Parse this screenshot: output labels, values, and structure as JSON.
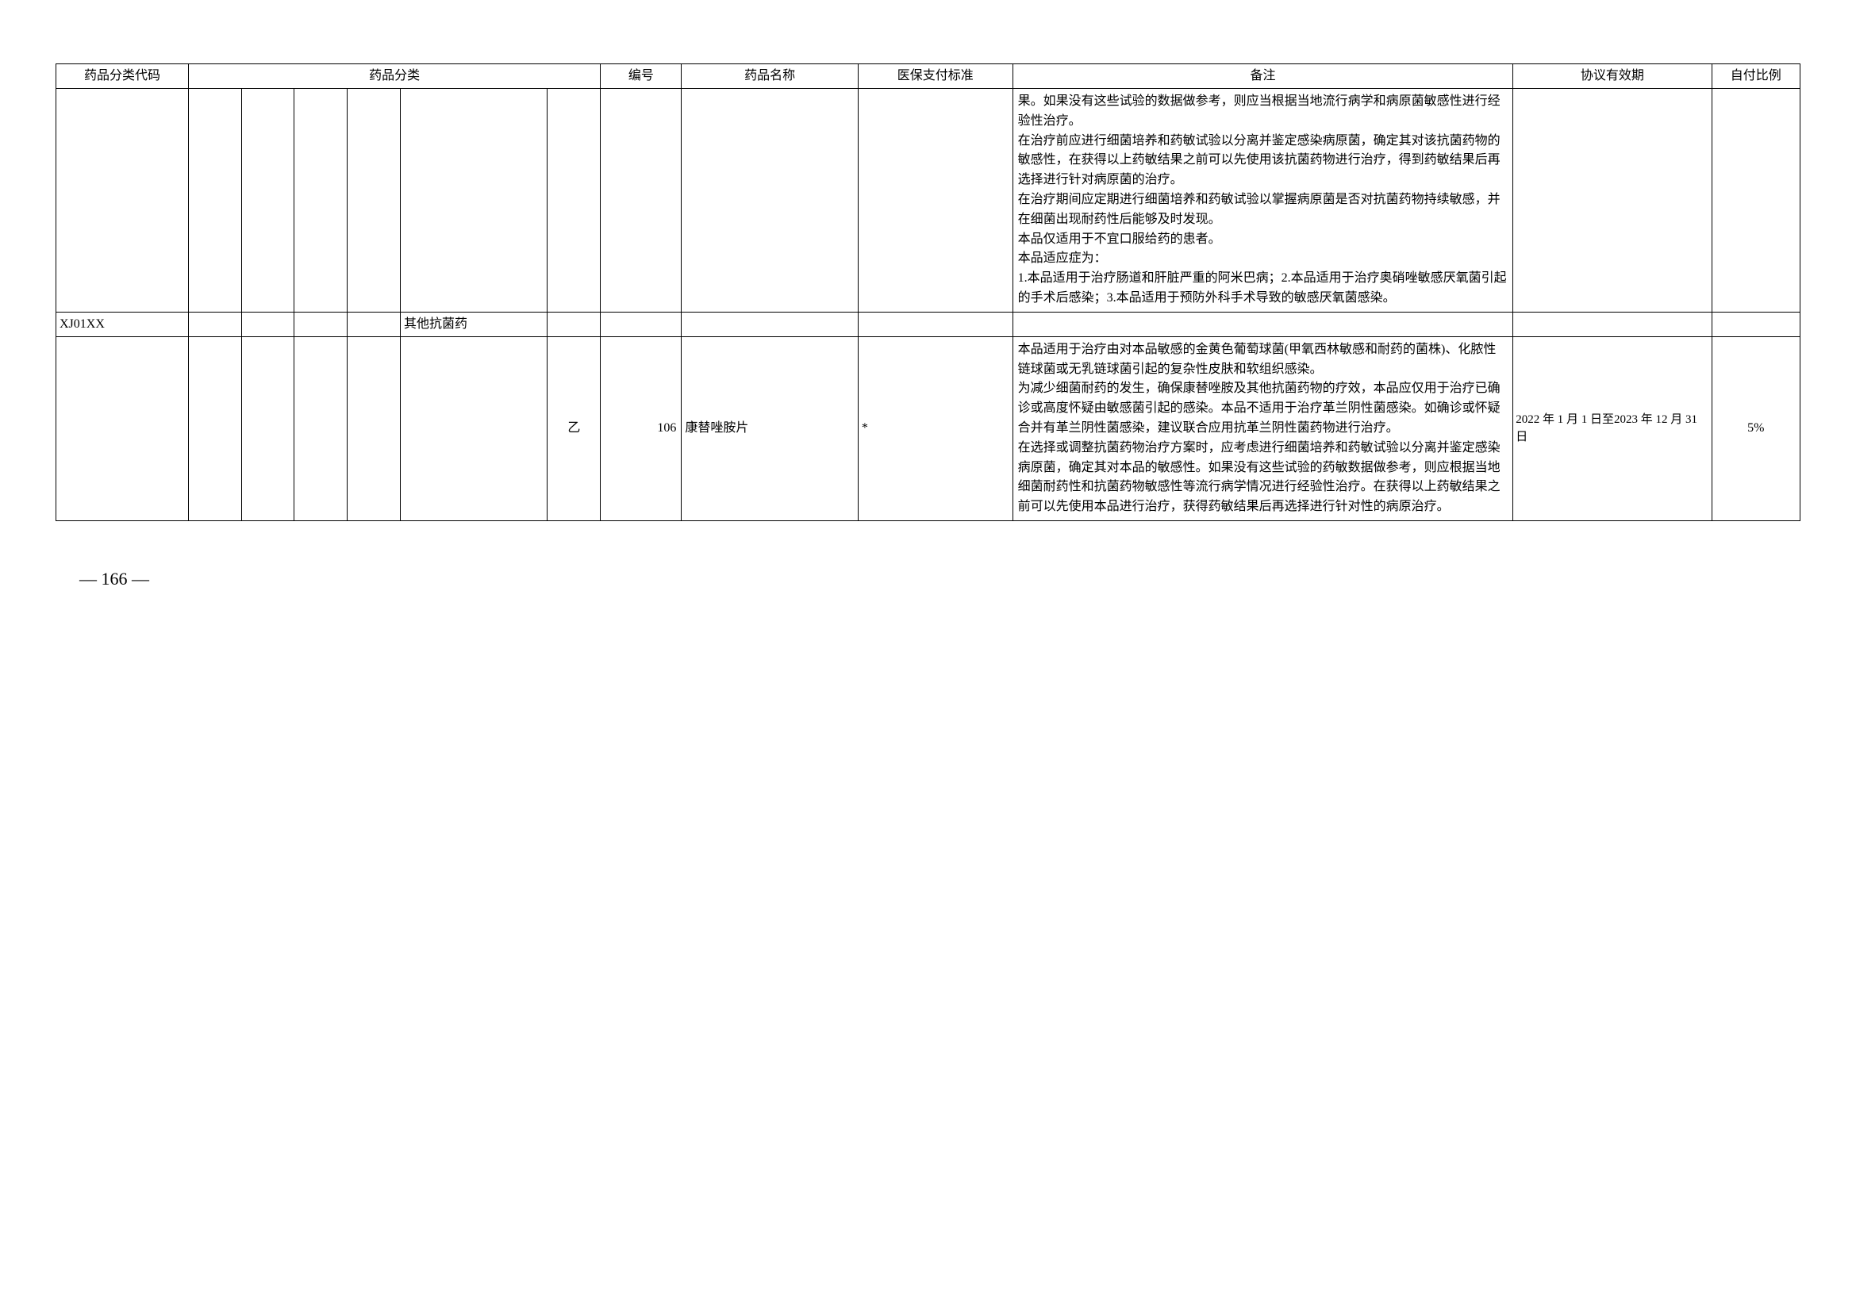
{
  "headers": {
    "code": "药品分类代码",
    "category": "药品分类",
    "number": "编号",
    "name": "药品名称",
    "standard": "医保支付标准",
    "remark": "备注",
    "period": "协议有效期",
    "ratio": "自付比例"
  },
  "rows": [
    {
      "code": "",
      "cat1": "",
      "cat2": "",
      "cat3": "",
      "cat4": "",
      "cat5": "",
      "cat6": "",
      "number": "",
      "name": "",
      "standard": "",
      "remark": "果。如果没有这些试验的数据做参考，则应当根据当地流行病学和病原菌敏感性进行经验性治疗。\n在治疗前应进行细菌培养和药敏试验以分离并鉴定感染病原菌，确定其对该抗菌药物的敏感性，在获得以上药敏结果之前可以先使用该抗菌药物进行治疗，得到药敏结果后再选择进行针对病原菌的治疗。\n在治疗期间应定期进行细菌培养和药敏试验以掌握病原菌是否对抗菌药物持续敏感，并在细菌出现耐药性后能够及时发现。\n本品仅适用于不宜口服给药的患者。\n本品适应症为：\n1.本品适用于治疗肠道和肝脏严重的阿米巴病；2.本品适用于治疗奥硝唑敏感厌氧菌引起的手术后感染；3.本品适用于预防外科手术导致的敏感厌氧菌感染。",
      "period": "",
      "ratio": ""
    },
    {
      "code": "XJ01XX",
      "cat1": "",
      "cat2": "",
      "cat3": "",
      "cat4": "",
      "cat5": "其他抗菌药",
      "cat6": "",
      "number": "",
      "name": "",
      "standard": "",
      "remark": "",
      "period": "",
      "ratio": ""
    },
    {
      "code": "",
      "cat1": "",
      "cat2": "",
      "cat3": "",
      "cat4": "",
      "cat5": "",
      "cat6": "乙",
      "number": "106",
      "name": "康替唑胺片",
      "standard": "*",
      "remark": "本品适用于治疗由对本品敏感的金黄色葡萄球菌(甲氧西林敏感和耐药的菌株)、化脓性链球菌或无乳链球菌引起的复杂性皮肤和软组织感染。\n为减少细菌耐药的发生，确保康替唑胺及其他抗菌药物的疗效，本品应仅用于治疗已确诊或高度怀疑由敏感菌引起的感染。本品不适用于治疗革兰阴性菌感染。如确诊或怀疑合并有革兰阴性菌感染，建议联合应用抗革兰阴性菌药物进行治疗。\n在选择或调整抗菌药物治疗方案时，应考虑进行细菌培养和药敏试验以分离并鉴定感染病原菌，确定其对本品的敏感性。如果没有这些试验的药敏数据做参考，则应根据当地细菌耐药性和抗菌药物敏感性等流行病学情况进行经验性治疗。在获得以上药敏结果之前可以先使用本品进行治疗，获得药敏结果后再选择进行针对性的病原治疗。",
      "period": "2022 年 1 月 1 日至2023 年 12 月 31 日",
      "ratio": "5%"
    }
  ],
  "pageNumber": "— 166 —",
  "style": {
    "border_color": "#000000",
    "background_color": "#ffffff",
    "text_color": "#000000",
    "font_family": "SimSun",
    "header_fontsize": 16,
    "cell_fontsize": 16,
    "page_fontsize": 22
  }
}
